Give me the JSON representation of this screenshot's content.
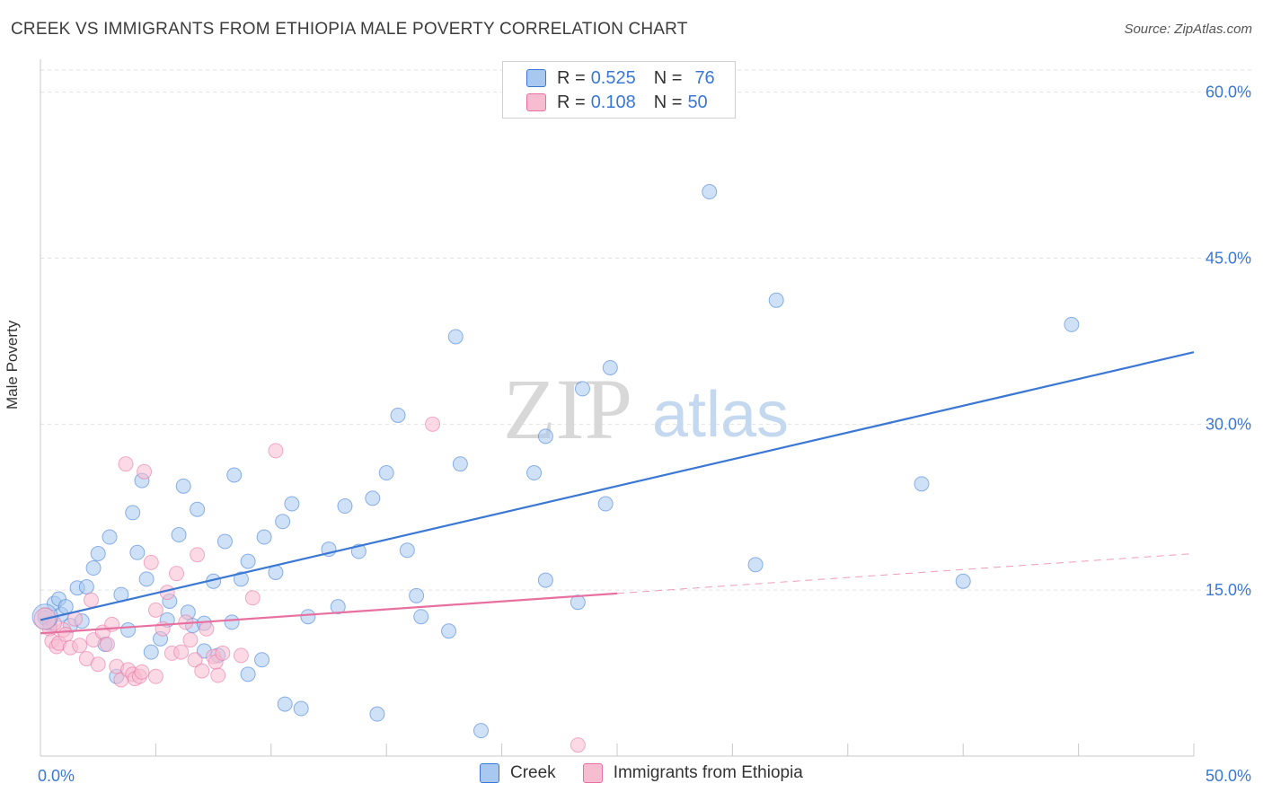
{
  "title": "CREEK VS IMMIGRANTS FROM ETHIOPIA MALE POVERTY CORRELATION CHART",
  "source": "Source: ZipAtlas.com",
  "watermark": {
    "zip": "ZIP",
    "atlas": "atlas"
  },
  "legend": {
    "r_label": "R =",
    "n_label": "N =",
    "rows": [
      {
        "r": "0.525",
        "n": "76",
        "color": "#a8c8f0"
      },
      {
        "r": "0.108",
        "n": "50",
        "color": "#f8bcd0"
      }
    ]
  },
  "chart_data": {
    "type": "scatter",
    "title": "CREEK VS IMMIGRANTS FROM ETHIOPIA MALE POVERTY CORRELATION CHART",
    "xlabel": "",
    "ylabel": "Male Poverty",
    "xlim": [
      0,
      50
    ],
    "ylim": [
      0,
      62
    ],
    "x_tick_labels": [
      {
        "value": 0,
        "label": "0.0%"
      },
      {
        "value": 50,
        "label": "50.0%"
      }
    ],
    "y_tick_labels": [
      {
        "value": 15,
        "label": "15.0%"
      },
      {
        "value": 30,
        "label": "30.0%"
      },
      {
        "value": 45,
        "label": "45.0%"
      },
      {
        "value": 60,
        "label": "60.0%"
      }
    ],
    "grid": true,
    "series": [
      {
        "name": "Creek",
        "color": "#3a78d4",
        "fill": "#a8c8f0",
        "trend": {
          "x": [
            0,
            50
          ],
          "y": [
            12.3,
            36.5
          ],
          "dashed_from": null
        },
        "points": [
          [
            0.2,
            12.5
          ],
          [
            0.4,
            12.0
          ],
          [
            0.6,
            13.8
          ],
          [
            0.8,
            14.2
          ],
          [
            0.9,
            12.8
          ],
          [
            1.1,
            13.5
          ],
          [
            1.3,
            11.8
          ],
          [
            1.6,
            15.2
          ],
          [
            1.8,
            12.2
          ],
          [
            2.0,
            15.3
          ],
          [
            2.3,
            17.0
          ],
          [
            2.5,
            18.3
          ],
          [
            2.8,
            10.1
          ],
          [
            3.0,
            19.8
          ],
          [
            3.3,
            7.2
          ],
          [
            3.5,
            14.6
          ],
          [
            3.8,
            11.4
          ],
          [
            4.0,
            22.0
          ],
          [
            4.2,
            18.4
          ],
          [
            4.4,
            24.9
          ],
          [
            4.6,
            16.0
          ],
          [
            4.8,
            9.4
          ],
          [
            5.2,
            10.6
          ],
          [
            5.5,
            12.3
          ],
          [
            5.6,
            14.0
          ],
          [
            6.0,
            20.0
          ],
          [
            6.2,
            24.4
          ],
          [
            6.4,
            13.0
          ],
          [
            6.6,
            11.8
          ],
          [
            6.8,
            22.3
          ],
          [
            7.1,
            12.0
          ],
          [
            7.1,
            9.5
          ],
          [
            7.5,
            15.8
          ],
          [
            7.7,
            9.1
          ],
          [
            8.0,
            19.4
          ],
          [
            8.3,
            12.1
          ],
          [
            8.4,
            25.4
          ],
          [
            8.7,
            16.0
          ],
          [
            9.0,
            17.6
          ],
          [
            9.0,
            7.4
          ],
          [
            9.6,
            8.7
          ],
          [
            9.7,
            19.8
          ],
          [
            10.2,
            16.6
          ],
          [
            10.5,
            21.2
          ],
          [
            10.6,
            4.7
          ],
          [
            10.9,
            22.8
          ],
          [
            11.3,
            4.3
          ],
          [
            11.6,
            12.6
          ],
          [
            12.5,
            18.7
          ],
          [
            12.9,
            13.5
          ],
          [
            13.2,
            22.6
          ],
          [
            13.8,
            18.5
          ],
          [
            14.4,
            23.3
          ],
          [
            14.6,
            3.8
          ],
          [
            15.0,
            25.6
          ],
          [
            15.5,
            30.8
          ],
          [
            15.9,
            18.6
          ],
          [
            16.3,
            14.5
          ],
          [
            16.5,
            12.6
          ],
          [
            17.7,
            11.3
          ],
          [
            18.0,
            37.9
          ],
          [
            18.2,
            26.4
          ],
          [
            19.1,
            2.3
          ],
          [
            21.4,
            25.6
          ],
          [
            21.9,
            15.9
          ],
          [
            21.9,
            28.9
          ],
          [
            23.3,
            13.9
          ],
          [
            23.5,
            33.2
          ],
          [
            24.5,
            22.8
          ],
          [
            24.7,
            35.1
          ],
          [
            29.0,
            51.0
          ],
          [
            31.0,
            17.3
          ],
          [
            31.9,
            41.2
          ],
          [
            38.2,
            24.6
          ],
          [
            40.0,
            15.8
          ],
          [
            44.7,
            39.0
          ]
        ]
      },
      {
        "name": "Immigrants from Ethiopia",
        "color": "#e870a0",
        "fill": "#f8bcd0",
        "trend": {
          "x": [
            0,
            50
          ],
          "y": [
            11.1,
            18.3
          ],
          "dashed_from": 25
        },
        "points": [
          [
            0.2,
            12.8
          ],
          [
            0.4,
            11.5
          ],
          [
            0.5,
            10.4
          ],
          [
            0.7,
            9.9
          ],
          [
            0.8,
            10.2
          ],
          [
            1.0,
            11.4
          ],
          [
            1.1,
            11.0
          ],
          [
            1.3,
            9.8
          ],
          [
            1.5,
            12.4
          ],
          [
            1.7,
            10.0
          ],
          [
            2.0,
            8.8
          ],
          [
            2.2,
            14.1
          ],
          [
            2.3,
            10.5
          ],
          [
            2.5,
            8.3
          ],
          [
            2.7,
            11.2
          ],
          [
            2.9,
            10.1
          ],
          [
            3.1,
            11.9
          ],
          [
            3.3,
            8.1
          ],
          [
            3.5,
            6.9
          ],
          [
            3.7,
            26.4
          ],
          [
            3.8,
            7.8
          ],
          [
            4.0,
            7.4
          ],
          [
            4.1,
            7.0
          ],
          [
            4.3,
            7.2
          ],
          [
            4.4,
            7.6
          ],
          [
            4.5,
            25.7
          ],
          [
            4.8,
            17.5
          ],
          [
            5.0,
            13.2
          ],
          [
            5.0,
            7.2
          ],
          [
            5.3,
            11.5
          ],
          [
            5.5,
            14.8
          ],
          [
            5.7,
            9.3
          ],
          [
            5.9,
            16.5
          ],
          [
            6.1,
            9.4
          ],
          [
            6.3,
            12.1
          ],
          [
            6.5,
            10.5
          ],
          [
            6.7,
            8.7
          ],
          [
            6.8,
            18.2
          ],
          [
            7.0,
            7.7
          ],
          [
            7.2,
            11.5
          ],
          [
            7.5,
            9.0
          ],
          [
            7.6,
            8.5
          ],
          [
            7.7,
            7.3
          ],
          [
            7.9,
            9.3
          ],
          [
            8.7,
            9.1
          ],
          [
            9.2,
            14.3
          ],
          [
            10.2,
            27.6
          ],
          [
            17.0,
            30.0
          ],
          [
            23.3,
            1.0
          ],
          [
            0.6,
            12.0
          ]
        ]
      }
    ]
  }
}
